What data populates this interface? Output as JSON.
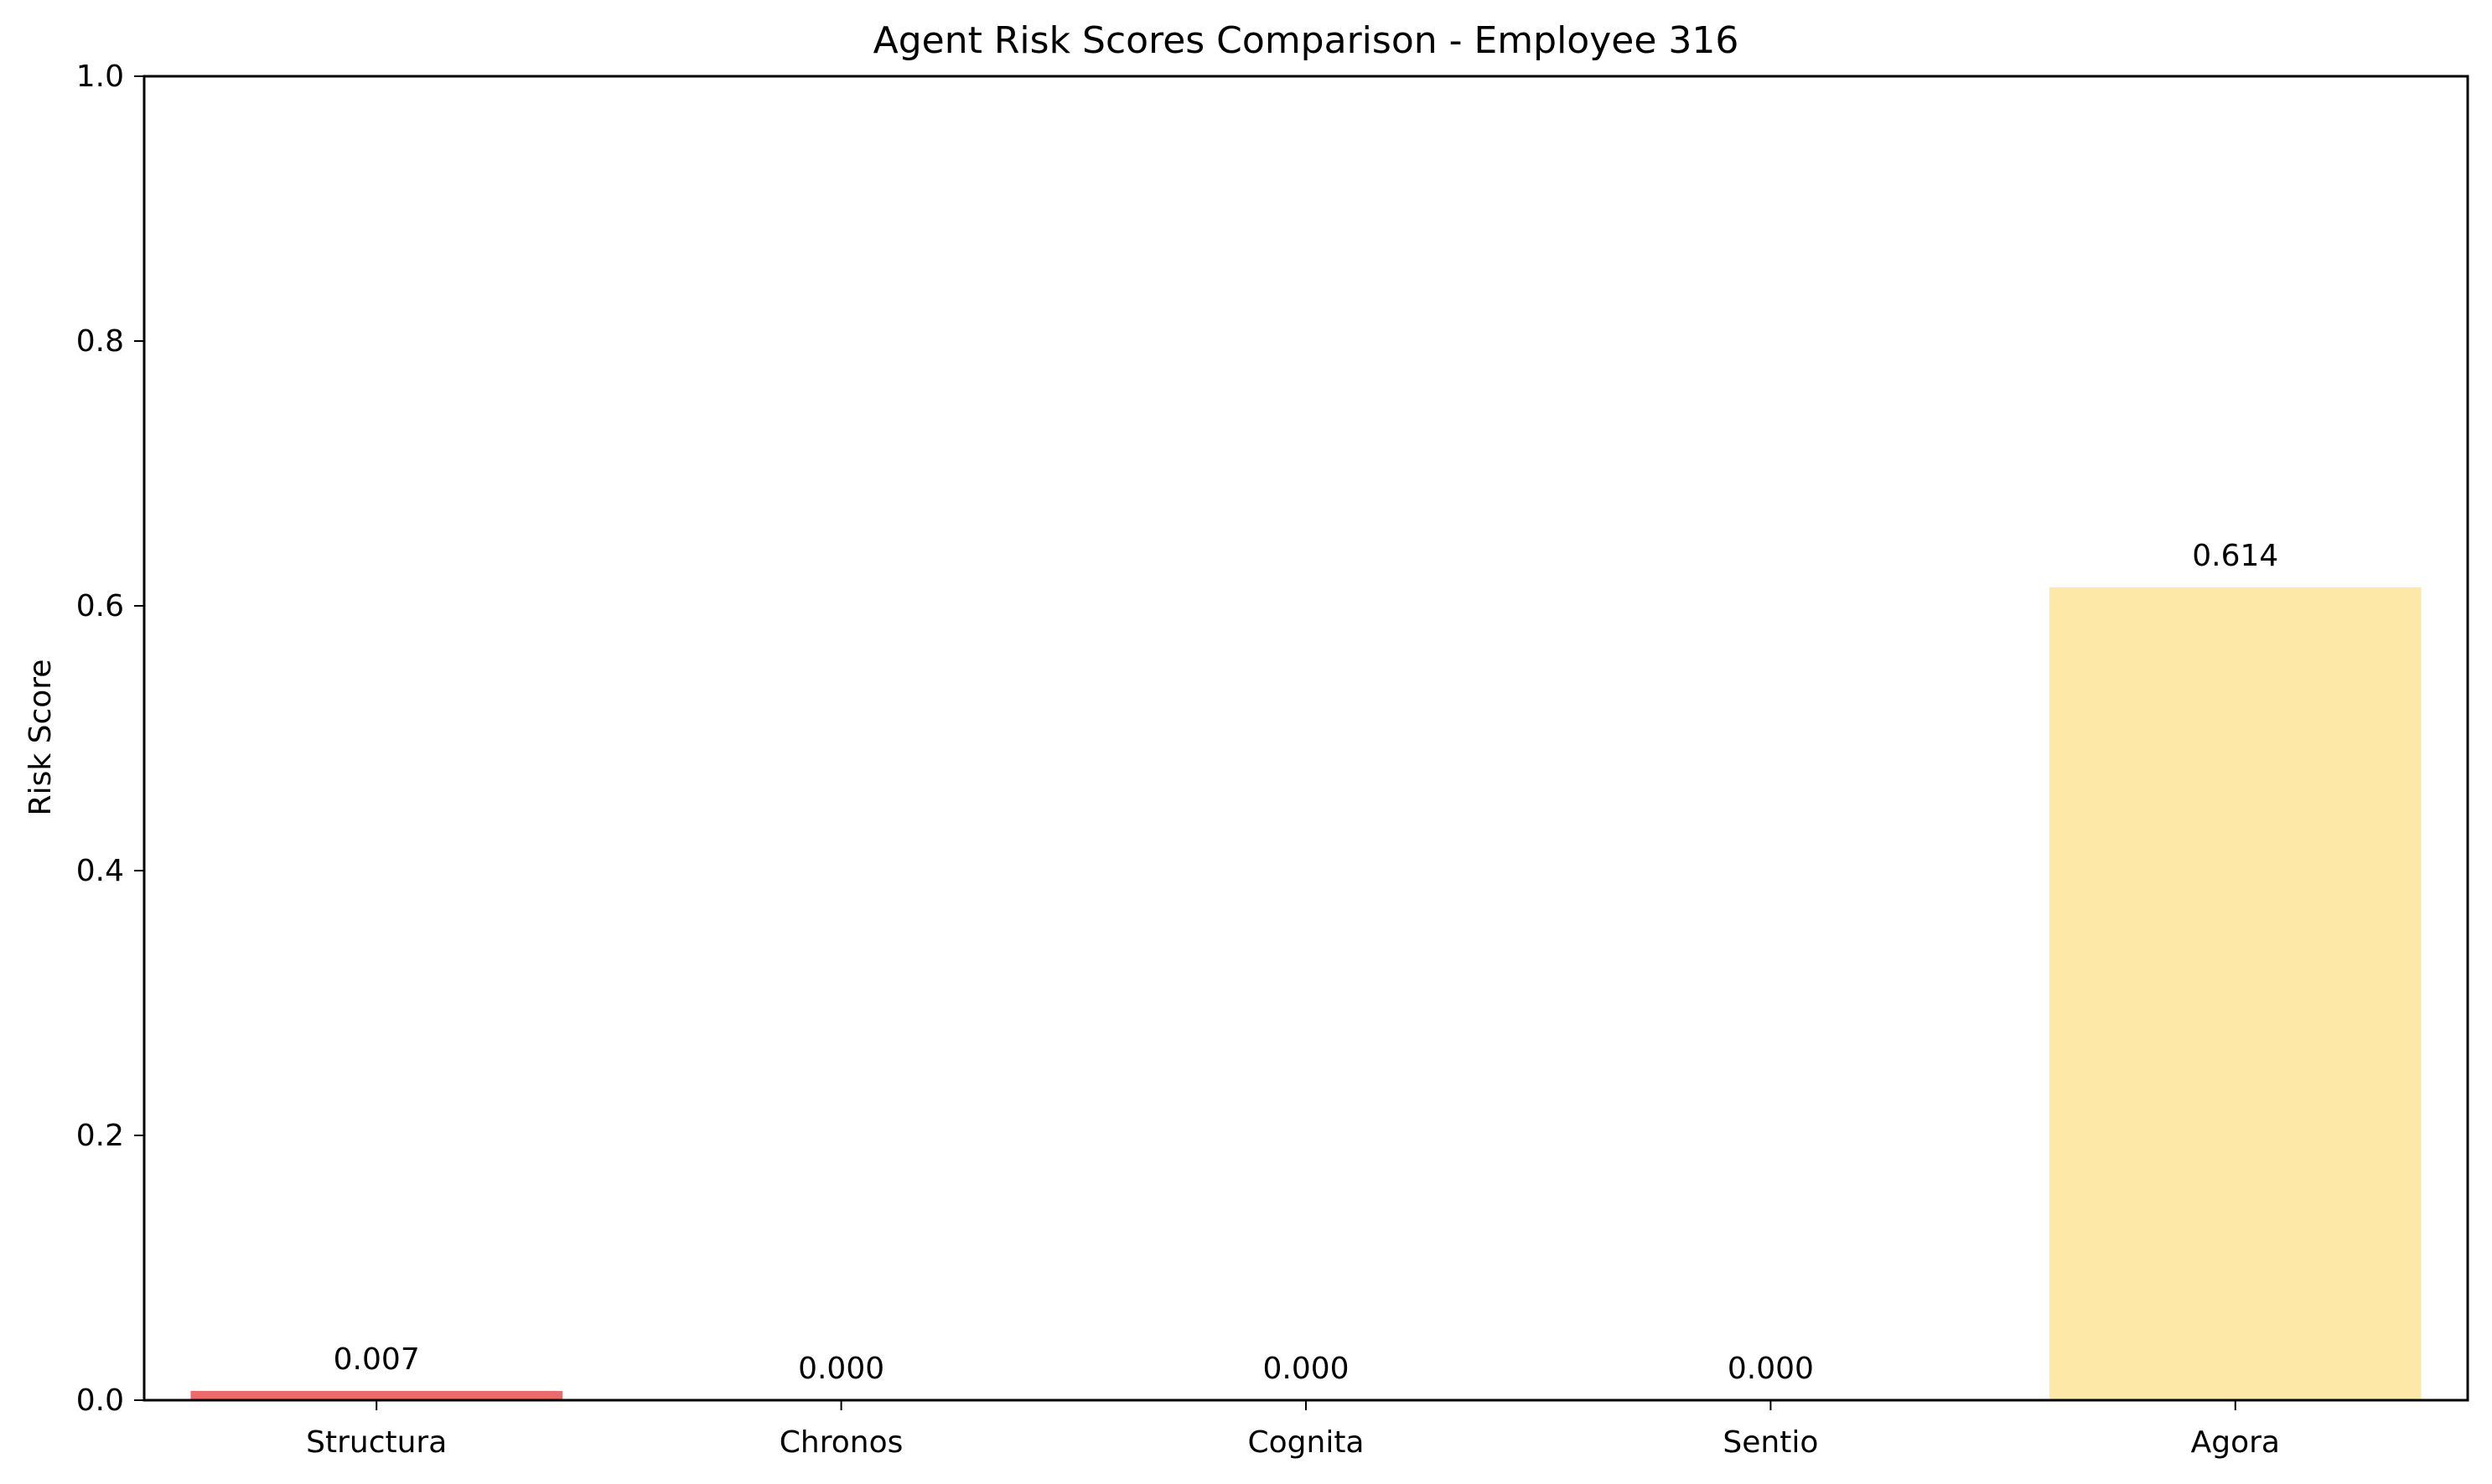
{
  "chart_data": {
    "type": "bar",
    "title": "Agent Risk Scores Comparison - Employee 316",
    "xlabel": "",
    "ylabel": "Risk Score",
    "categories": [
      "Structura",
      "Chronos",
      "Cognita",
      "Sentio",
      "Agora"
    ],
    "values": [
      0.007,
      0.0,
      0.0,
      0.0,
      0.614
    ],
    "value_labels": [
      "0.007",
      "0.000",
      "0.000",
      "0.000",
      "0.614"
    ],
    "colors": [
      "#ee6a6a",
      "#6fcfc7",
      "#5aa9d6",
      "#a8d9b8",
      "#fde8a7"
    ],
    "ylim": [
      0,
      1.0
    ],
    "yticks": [
      0.0,
      0.2,
      0.4,
      0.6,
      0.8,
      1.0
    ],
    "ytick_labels": [
      "0.0",
      "0.2",
      "0.4",
      "0.6",
      "0.8",
      "1.0"
    ],
    "grid": false,
    "legend": "none"
  }
}
